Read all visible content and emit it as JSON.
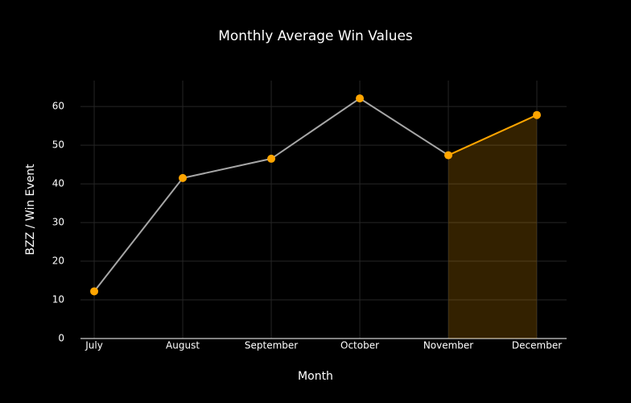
{
  "chart_data": {
    "type": "line",
    "title": "Monthly Average Win Values",
    "x_label": "Month",
    "y_label": "BZZ / Win Event",
    "categories": [
      "July",
      "August",
      "September",
      "October",
      "November",
      "December"
    ],
    "values": [
      12.2,
      41.5,
      46.5,
      62.1,
      47.4,
      57.8
    ],
    "line_color": "#a6a6a6",
    "marker_color": "#ffa500",
    "highlight_color": "#ffa500",
    "highlight_start": 4,
    "ylim": [
      0,
      66.7
    ],
    "yticks": [
      0,
      10,
      20,
      30,
      40,
      50,
      60
    ],
    "grid": true
  }
}
